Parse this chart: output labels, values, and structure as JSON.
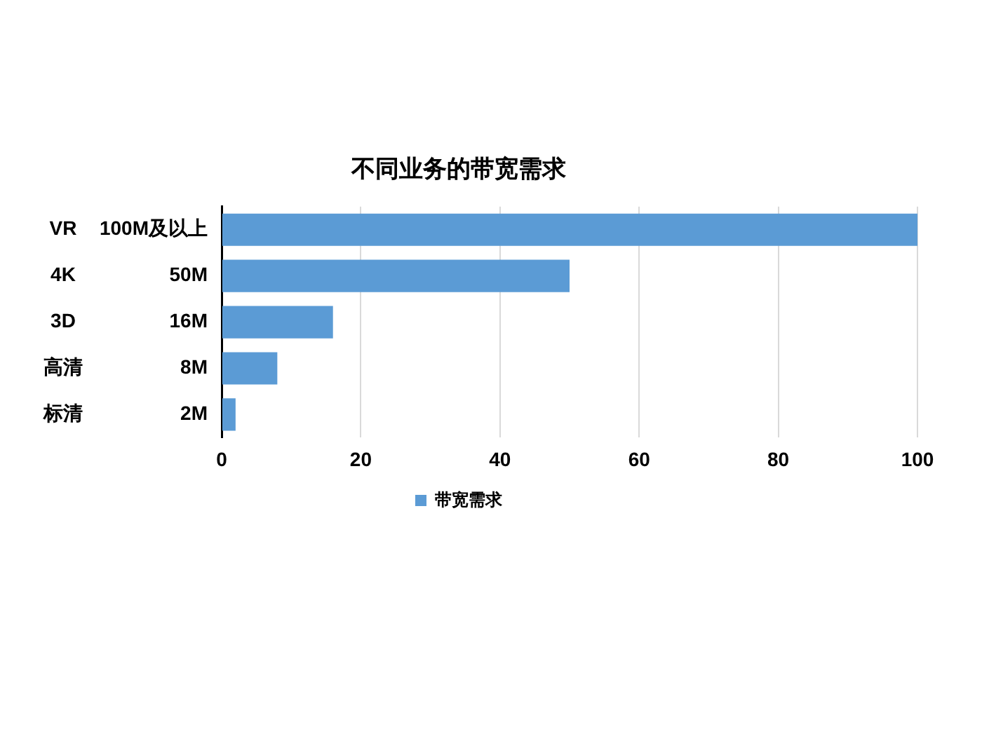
{
  "chart_data": {
    "type": "bar",
    "orientation": "horizontal",
    "title": "不同业务的带宽需求",
    "categories": [
      "100M及以上",
      "50M",
      "16M",
      "8M",
      "2M"
    ],
    "series": [
      {
        "name": "带宽需求",
        "color": "#5b9bd5",
        "values": [
          100,
          50,
          16,
          8,
          2
        ]
      }
    ],
    "xlim": [
      0,
      100
    ],
    "xticks": [
      0,
      20,
      40,
      60,
      80,
      100
    ],
    "grid": "x",
    "legend": "bottom",
    "annotations": [
      "VR",
      "4K",
      "3D",
      "高清",
      "标清"
    ]
  }
}
